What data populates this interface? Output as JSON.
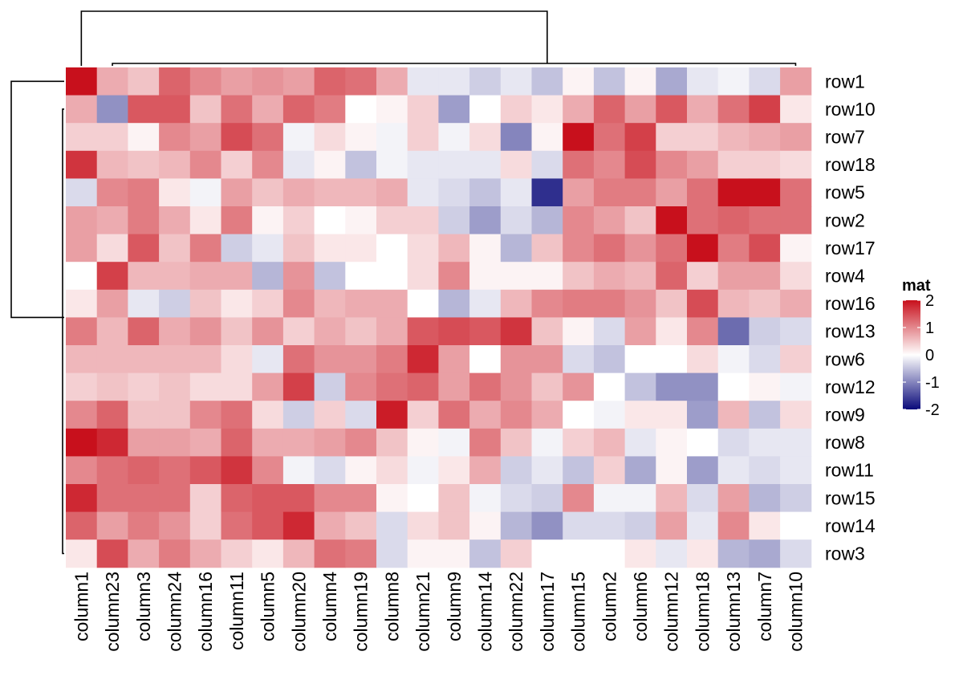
{
  "chart_data": {
    "type": "heatmap",
    "title": "",
    "xlabel": "",
    "ylabel": "",
    "legend": {
      "title": "mat",
      "ticks": [
        2,
        1,
        0,
        -1,
        -2
      ],
      "placement": "right"
    },
    "color_scale": {
      "min": -2,
      "mid": 0,
      "max": 2,
      "low_color": "#0a0a7a",
      "mid_color": "#ffffff",
      "high_color": "#c8101c"
    },
    "rows": [
      "row1",
      "row10",
      "row7",
      "row18",
      "row5",
      "row2",
      "row17",
      "row4",
      "row16",
      "row13",
      "row6",
      "row12",
      "row9",
      "row8",
      "row11",
      "row15",
      "row14",
      "row3"
    ],
    "columns": [
      "column1",
      "column23",
      "column3",
      "column24",
      "column16",
      "column11",
      "column5",
      "column20",
      "column4",
      "column19",
      "column8",
      "column21",
      "column9",
      "column14",
      "column22",
      "column17",
      "column15",
      "column2",
      "column6",
      "column12",
      "column18",
      "column13",
      "column7",
      "column10"
    ],
    "values": [
      [
        2.0,
        0.7,
        0.5,
        1.3,
        1.0,
        0.8,
        0.9,
        0.8,
        1.3,
        1.2,
        0.7,
        -0.2,
        -0.2,
        -0.4,
        -0.2,
        -0.5,
        0.1,
        -0.5,
        0.1,
        -0.7,
        -0.2,
        -0.1,
        -0.3,
        0.8
      ],
      [
        0.7,
        -0.9,
        1.4,
        1.4,
        0.5,
        1.2,
        0.7,
        1.3,
        1.1,
        0.0,
        0.1,
        0.4,
        -0.8,
        0.0,
        0.4,
        0.2,
        0.7,
        1.3,
        0.8,
        1.4,
        0.7,
        1.2,
        1.6,
        0.2
      ],
      [
        0.4,
        0.4,
        0.1,
        1.0,
        0.8,
        1.5,
        1.2,
        -0.1,
        0.3,
        0.1,
        -0.1,
        0.4,
        -0.1,
        0.3,
        -1.0,
        0.1,
        2.0,
        1.2,
        1.6,
        0.4,
        0.4,
        0.6,
        0.7,
        0.8
      ],
      [
        1.7,
        0.6,
        0.5,
        0.6,
        1.0,
        0.4,
        1.0,
        -0.2,
        0.1,
        -0.5,
        -0.1,
        -0.2,
        -0.2,
        -0.2,
        0.3,
        -0.3,
        1.2,
        1.0,
        1.5,
        1.0,
        0.8,
        0.4,
        0.4,
        0.3
      ],
      [
        -0.3,
        1.0,
        1.1,
        0.2,
        -0.1,
        0.8,
        0.5,
        0.7,
        0.6,
        0.6,
        0.7,
        -0.2,
        -0.3,
        -0.5,
        -0.2,
        -1.7,
        0.8,
        1.1,
        1.1,
        0.8,
        1.2,
        2.0,
        2.0,
        1.2
      ],
      [
        0.8,
        0.7,
        1.1,
        0.7,
        0.2,
        1.1,
        0.1,
        0.4,
        0.0,
        0.1,
        0.4,
        0.4,
        -0.4,
        -0.8,
        -0.3,
        -0.6,
        1.0,
        0.8,
        0.5,
        2.0,
        1.2,
        1.3,
        1.2,
        1.2
      ],
      [
        0.8,
        0.3,
        1.4,
        0.5,
        1.1,
        -0.4,
        -0.2,
        0.5,
        0.2,
        0.2,
        0.0,
        0.3,
        0.6,
        0.1,
        -0.6,
        0.5,
        1.0,
        1.2,
        0.9,
        1.2,
        2.0,
        1.1,
        1.5,
        0.1
      ],
      [
        0.0,
        1.6,
        0.6,
        0.6,
        0.7,
        0.7,
        -0.6,
        0.9,
        -0.5,
        0.0,
        0.0,
        0.3,
        1.0,
        0.1,
        0.1,
        0.1,
        0.5,
        0.7,
        0.6,
        1.3,
        0.4,
        0.8,
        0.8,
        0.3
      ],
      [
        0.2,
        0.8,
        -0.2,
        -0.4,
        0.5,
        0.2,
        0.4,
        1.0,
        0.6,
        0.7,
        0.7,
        0.0,
        -0.6,
        -0.2,
        0.6,
        1.0,
        1.1,
        1.1,
        0.9,
        0.5,
        1.5,
        0.6,
        0.5,
        0.7
      ],
      [
        1.1,
        0.6,
        1.3,
        0.7,
        0.9,
        0.5,
        0.9,
        0.4,
        0.7,
        0.5,
        0.7,
        1.4,
        1.5,
        1.4,
        1.7,
        0.5,
        0.1,
        -0.3,
        0.8,
        0.2,
        1.0,
        -1.2,
        -0.4,
        -0.3
      ],
      [
        0.6,
        0.6,
        0.6,
        0.6,
        0.6,
        0.3,
        -0.2,
        1.2,
        0.9,
        0.9,
        1.1,
        1.8,
        0.8,
        0.0,
        0.9,
        0.9,
        -0.3,
        -0.5,
        0.0,
        0.0,
        0.3,
        -0.1,
        -0.3,
        0.4
      ],
      [
        0.4,
        0.5,
        0.4,
        0.5,
        0.3,
        0.3,
        0.8,
        1.6,
        -0.4,
        1.0,
        1.2,
        1.3,
        0.8,
        1.2,
        0.9,
        0.5,
        0.9,
        0.0,
        -0.5,
        -0.9,
        -0.9,
        0.0,
        0.1,
        -0.1
      ],
      [
        1.0,
        1.3,
        0.5,
        0.5,
        1.0,
        1.2,
        0.3,
        -0.4,
        0.4,
        -0.3,
        1.9,
        0.4,
        1.2,
        0.7,
        1.0,
        0.7,
        0.0,
        -0.1,
        0.2,
        0.2,
        -0.8,
        0.6,
        -0.5,
        0.3
      ],
      [
        2.0,
        1.8,
        0.8,
        0.8,
        0.7,
        1.3,
        0.7,
        0.7,
        0.8,
        1.0,
        0.5,
        0.1,
        -0.1,
        1.1,
        0.5,
        -0.1,
        0.4,
        0.6,
        -0.2,
        0.1,
        0.0,
        -0.3,
        -0.2,
        -0.2
      ],
      [
        1.0,
        1.2,
        1.3,
        1.2,
        1.4,
        1.7,
        1.0,
        -0.1,
        -0.3,
        0.1,
        0.3,
        -0.1,
        0.2,
        0.7,
        -0.4,
        -0.2,
        -0.5,
        0.4,
        -0.7,
        0.1,
        -0.8,
        -0.2,
        -0.3,
        -0.2
      ],
      [
        1.8,
        1.2,
        1.2,
        1.2,
        0.4,
        1.3,
        1.4,
        1.4,
        1.0,
        1.0,
        0.1,
        0.0,
        0.5,
        -0.1,
        -0.3,
        -0.4,
        1.0,
        -0.1,
        -0.1,
        0.6,
        -0.3,
        0.8,
        -0.6,
        -0.4
      ],
      [
        1.3,
        0.8,
        1.1,
        0.9,
        0.4,
        1.2,
        1.4,
        1.8,
        0.7,
        0.5,
        -0.3,
        0.3,
        0.5,
        0.1,
        -0.6,
        -0.9,
        -0.3,
        -0.3,
        -0.4,
        0.8,
        -0.2,
        1.0,
        0.2,
        0.0
      ],
      [
        0.2,
        1.5,
        0.7,
        1.1,
        0.7,
        0.4,
        0.2,
        0.6,
        1.2,
        1.1,
        -0.3,
        0.1,
        0.1,
        -0.5,
        0.4,
        0.0,
        0.0,
        0.0,
        0.2,
        -0.2,
        0.2,
        -0.6,
        -0.7,
        -0.3
      ]
    ]
  }
}
